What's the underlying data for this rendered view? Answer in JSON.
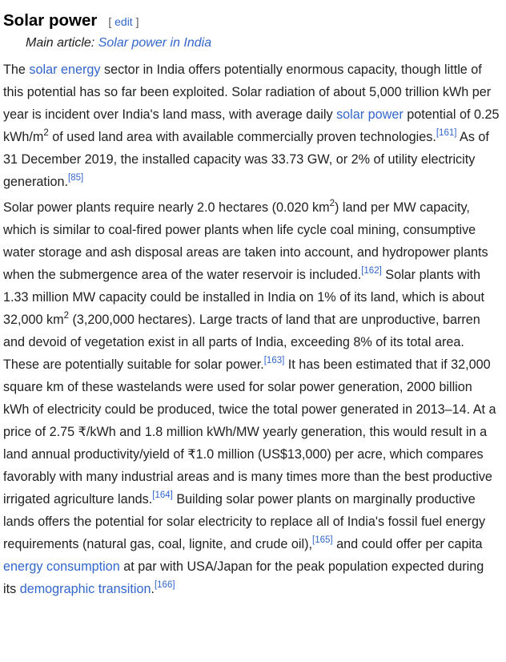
{
  "section": {
    "title": "Solar power",
    "edit_open": "[ ",
    "edit_label": "edit",
    "edit_close": " ]"
  },
  "hatnote": {
    "prefix": "Main article: ",
    "link": "Solar power in India"
  },
  "p1": {
    "t1": "The ",
    "l1": "solar energy",
    "t2": " sector in India offers potentially enormous capacity, though little of this potential has so far been exploited. Solar radiation of about 5,000 trillion kWh per year is incident over India's land mass, with average daily ",
    "l2": "solar power",
    "t3": " potential of 0.25 kWh/m",
    "sup1": "2",
    "t4": " of used land area with available commercially proven technologies.",
    "ref1": "[161]",
    "t5": " As of 31 December 2019, the installed capacity was 33.73 GW, or 2% of utility electricity generation.",
    "ref2": "[85]"
  },
  "p2": {
    "t1": "Solar power plants require nearly 2.0 hectares (0.020 km",
    "sup1": "2",
    "t2": ") land per MW capacity, which is similar to coal-fired power plants when life cycle coal mining, consumptive water storage and ash disposal areas are taken into account, and hydropower plants when the submergence area of the water reservoir is included.",
    "ref1": "[162]",
    "t3": " Solar plants with 1.33 million MW capacity could be installed in India on 1% of its land, which is about 32,000 km",
    "sup2": "2",
    "t4": " (3,200,000 hectares). Large tracts of land that are unproductive, barren and devoid of vegetation exist in all parts of India, exceeding 8% of its total area. These are potentially suitable for solar power.",
    "ref2": "[163]",
    "t5": " It has been estimated that if 32,000 square km of these wastelands were used for solar power generation, 2000 billion kWh of electricity could be produced, twice the total power generated in 2013–14. At a price of 2.75 ₹/kWh and 1.8 million kWh/MW yearly generation, this would result in a land annual productivity/yield of ₹1.0 million (US$13,000) per acre, which compares favorably with many industrial areas and is many times more than the best productive irrigated agriculture lands.",
    "ref3": "[164]",
    "t6": " Building solar power plants on marginally productive lands offers the potential for solar electricity to replace all of India's fossil fuel energy requirements (natural gas, coal, lignite, and crude oil),",
    "ref4": "[165]",
    "t7": " and could offer per capita ",
    "l1": "energy consumption",
    "t8": " at par with USA/Japan for the peak population expected during its ",
    "l2": "demographic transition",
    "t9": ".",
    "ref5": "[166]"
  }
}
